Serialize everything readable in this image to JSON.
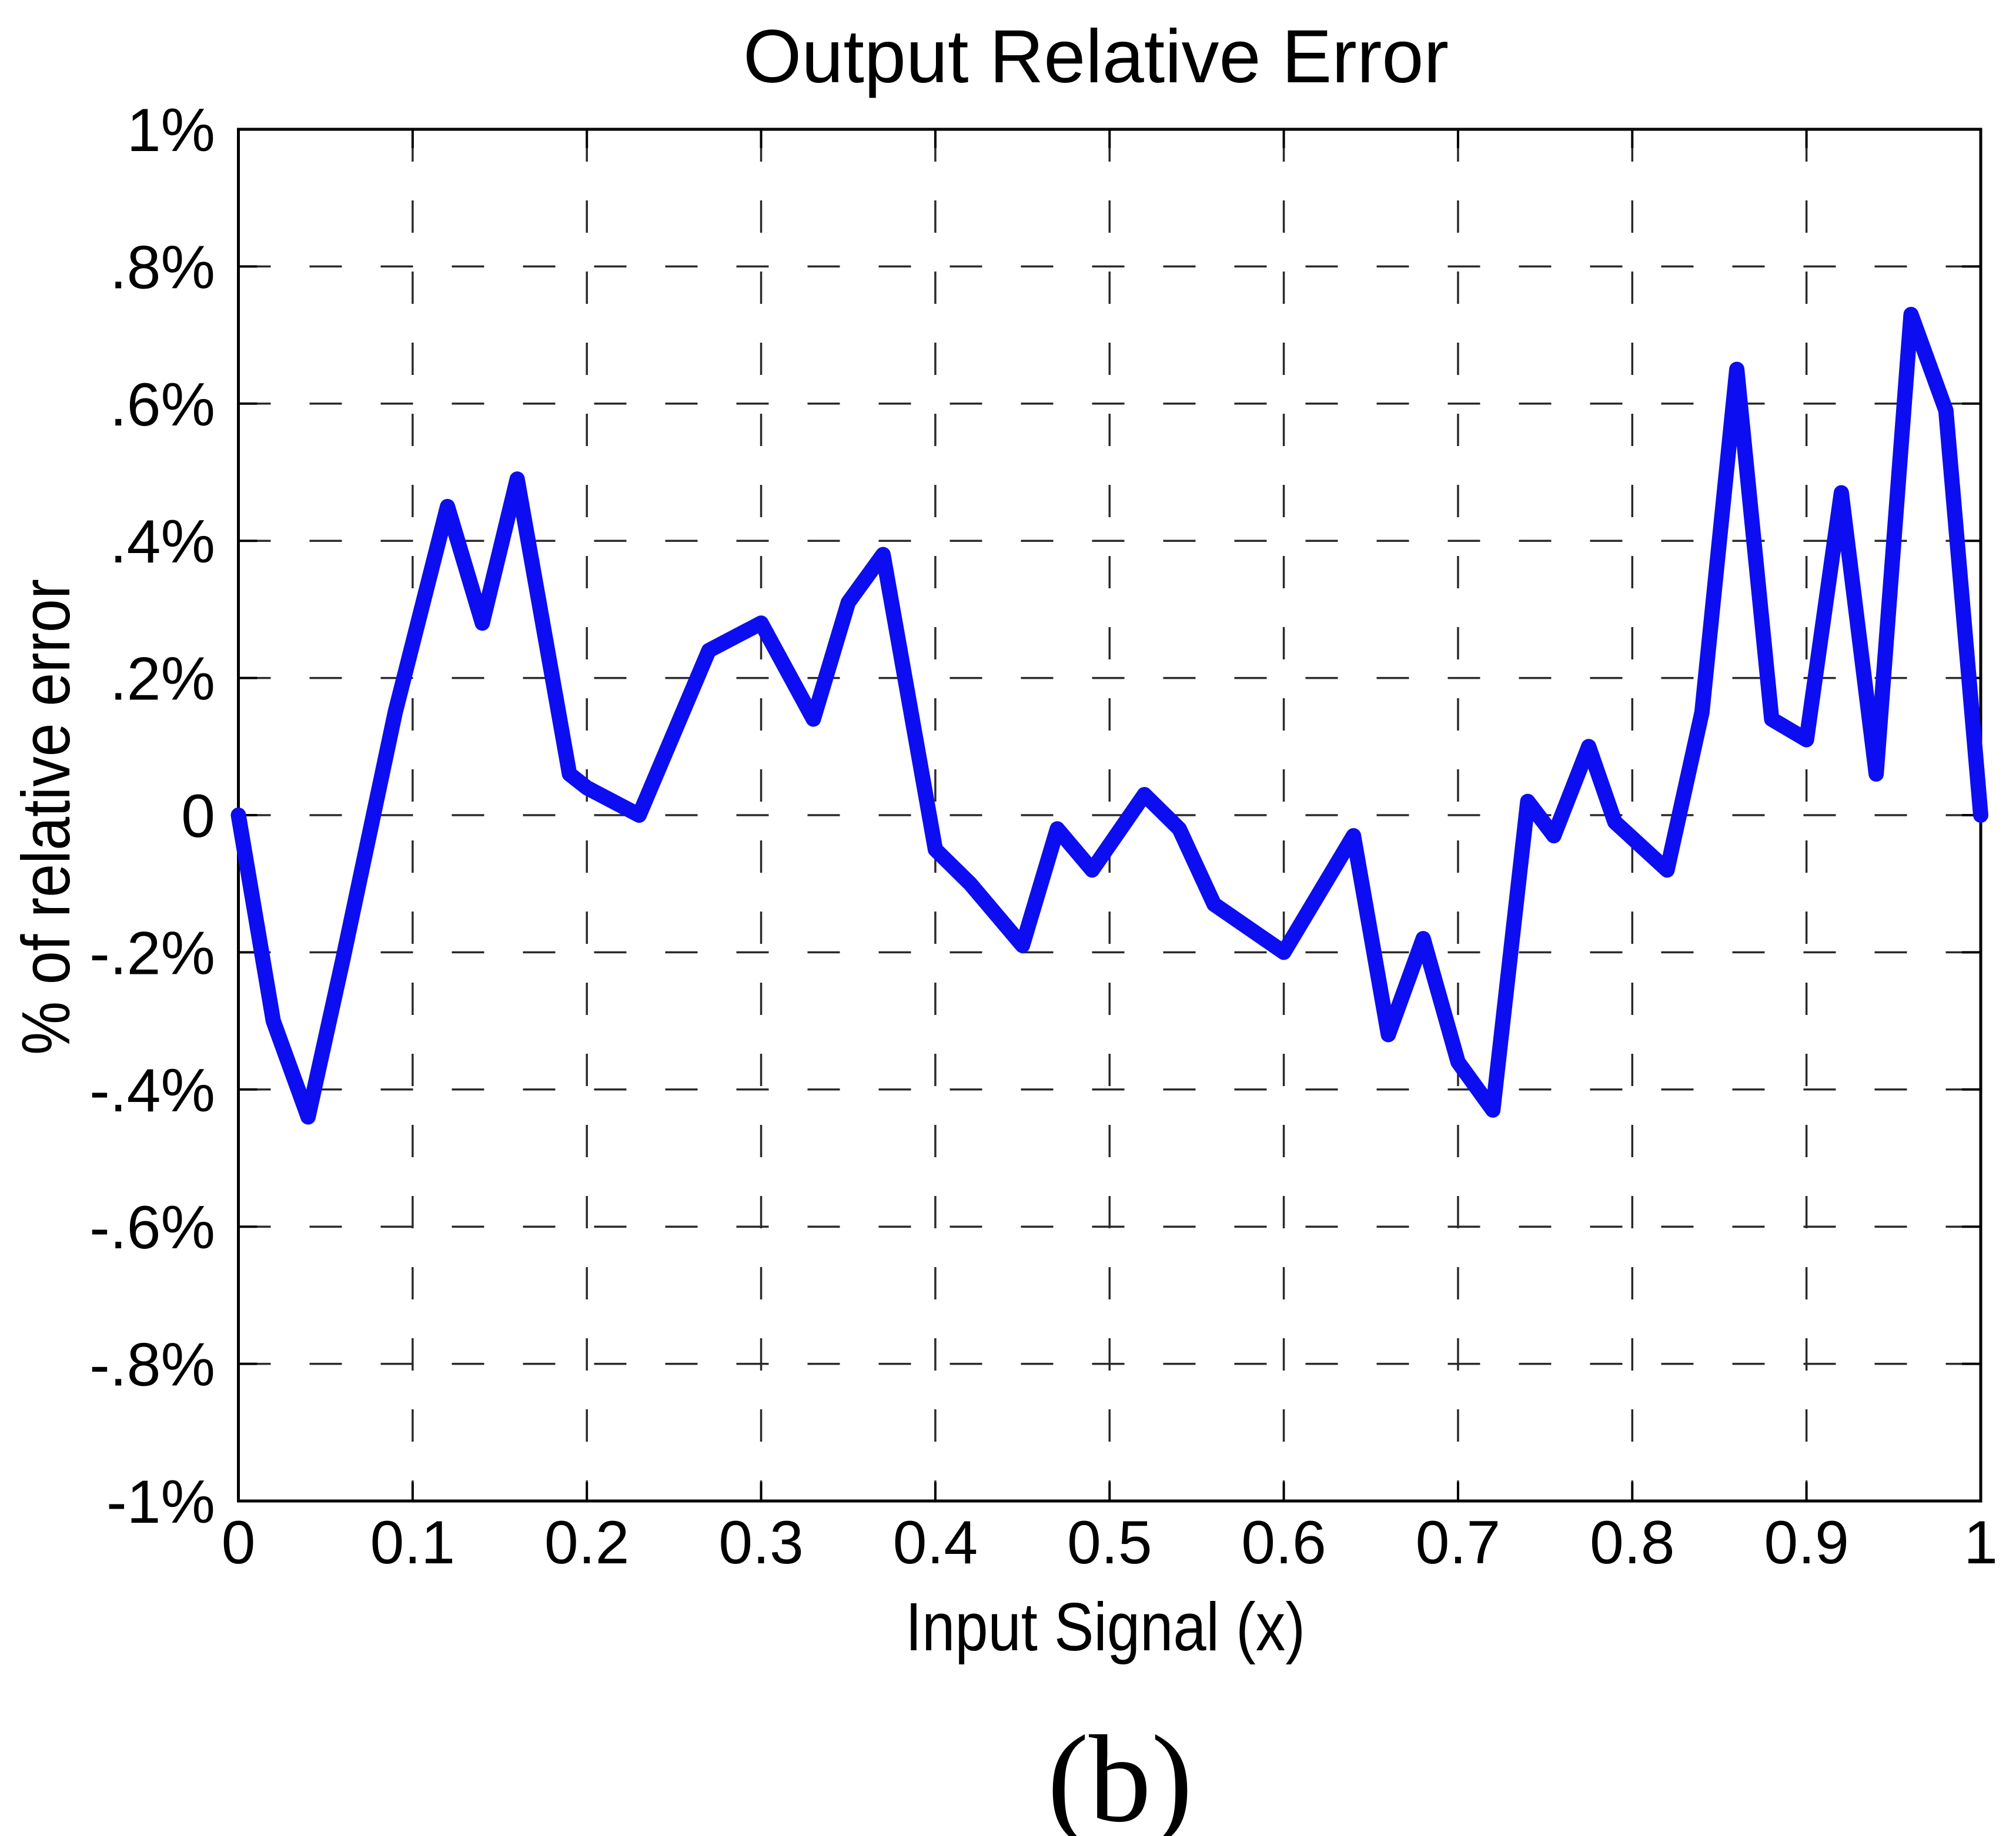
{
  "chart_data": {
    "type": "line",
    "title": "Output Relative Error",
    "xlabel": "Input Signal (x)",
    "ylabel": "% of relative error",
    "caption": "(b)",
    "xlim": [
      0,
      1
    ],
    "ylim_percent": [
      -1,
      1
    ],
    "grid": "dashed",
    "legend": "none",
    "axis_color": "#000000",
    "grid_color": "#2a2a2a",
    "x_ticks": [
      {
        "v": 0.0,
        "label": "0"
      },
      {
        "v": 0.1,
        "label": "0.1"
      },
      {
        "v": 0.2,
        "label": "0.2"
      },
      {
        "v": 0.3,
        "label": "0.3"
      },
      {
        "v": 0.4,
        "label": "0.4"
      },
      {
        "v": 0.5,
        "label": "0.5"
      },
      {
        "v": 0.6,
        "label": "0.6"
      },
      {
        "v": 0.7,
        "label": "0.7"
      },
      {
        "v": 0.8,
        "label": "0.8"
      },
      {
        "v": 0.9,
        "label": "0.9"
      },
      {
        "v": 1.0,
        "label": "1"
      }
    ],
    "y_ticks": [
      {
        "p": 1.0,
        "label": "1%"
      },
      {
        "p": 0.8,
        "label": ".8%"
      },
      {
        "p": 0.6,
        "label": ".6%"
      },
      {
        "p": 0.4,
        "label": ".4%"
      },
      {
        "p": 0.2,
        "label": ".2%"
      },
      {
        "p": 0.0,
        "label": "0"
      },
      {
        "p": -0.2,
        "label": "-.2%"
      },
      {
        "p": -0.4,
        "label": "-.4%"
      },
      {
        "p": -0.6,
        "label": "-.6%"
      },
      {
        "p": -0.8,
        "label": "-.8%"
      },
      {
        "p": -1.0,
        "label": "-1%"
      }
    ],
    "x_gridlines": [
      0.1,
      0.2,
      0.3,
      0.4,
      0.5,
      0.6,
      0.7,
      0.8,
      0.9
    ],
    "y_gridlines": [
      0.8,
      0.6,
      0.4,
      0.2,
      0.0,
      -0.2,
      -0.4,
      -0.6,
      -0.8
    ],
    "series": [
      {
        "name": "output relative error",
        "color": "#0d0df2",
        "points": [
          [
            0.0,
            0.0
          ],
          [
            0.02,
            -0.3
          ],
          [
            0.04,
            -0.44
          ],
          [
            0.06,
            -0.21
          ],
          [
            0.09,
            0.15
          ],
          [
            0.12,
            0.45
          ],
          [
            0.14,
            0.28
          ],
          [
            0.16,
            0.49
          ],
          [
            0.19,
            0.06
          ],
          [
            0.2,
            0.04
          ],
          [
            0.23,
            0.0
          ],
          [
            0.27,
            0.24
          ],
          [
            0.3,
            0.28
          ],
          [
            0.33,
            0.14
          ],
          [
            0.35,
            0.31
          ],
          [
            0.37,
            0.38
          ],
          [
            0.4,
            -0.05
          ],
          [
            0.42,
            -0.1
          ],
          [
            0.45,
            -0.19
          ],
          [
            0.47,
            -0.02
          ],
          [
            0.49,
            -0.08
          ],
          [
            0.52,
            0.03
          ],
          [
            0.54,
            -0.02
          ],
          [
            0.56,
            -0.13
          ],
          [
            0.6,
            -0.2
          ],
          [
            0.64,
            -0.03
          ],
          [
            0.66,
            -0.32
          ],
          [
            0.68,
            -0.18
          ],
          [
            0.7,
            -0.36
          ],
          [
            0.72,
            -0.43
          ],
          [
            0.74,
            0.02
          ],
          [
            0.755,
            -0.03
          ],
          [
            0.775,
            0.1
          ],
          [
            0.79,
            -0.01
          ],
          [
            0.82,
            -0.08
          ],
          [
            0.84,
            0.15
          ],
          [
            0.86,
            0.65
          ],
          [
            0.88,
            0.14
          ],
          [
            0.9,
            0.11
          ],
          [
            0.92,
            0.47
          ],
          [
            0.94,
            0.06
          ],
          [
            0.96,
            0.73
          ],
          [
            0.98,
            0.59
          ],
          [
            1.0,
            0.0
          ]
        ]
      }
    ]
  }
}
